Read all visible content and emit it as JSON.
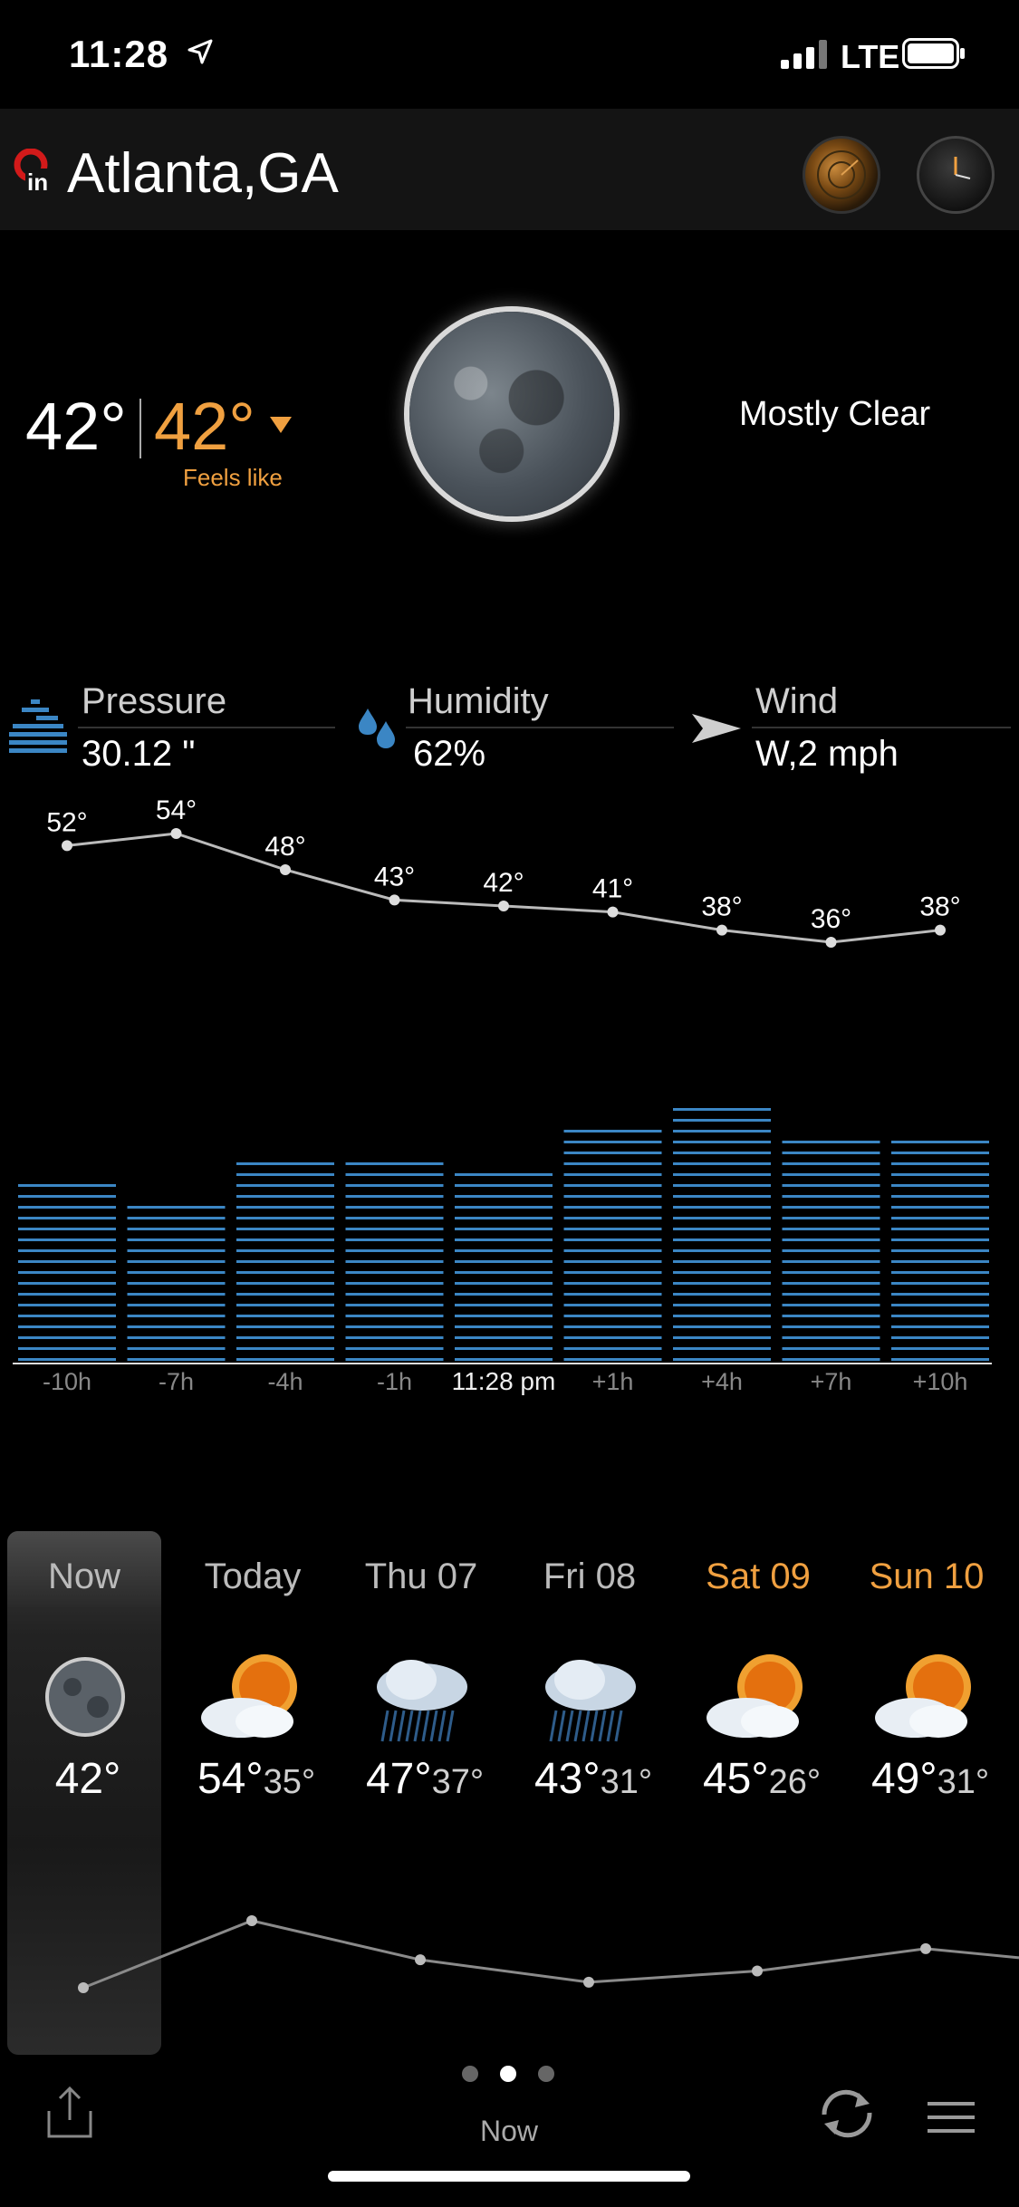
{
  "status": {
    "time": "11:28",
    "network": "LTE"
  },
  "header": {
    "city": "Atlanta,GA"
  },
  "current": {
    "temp": "42°",
    "feels_temp": "42°",
    "feels_label": "Feels like",
    "condition": "Mostly Clear"
  },
  "metrics": [
    {
      "label": "Pressure",
      "value": "30.12 \""
    },
    {
      "label": "Humidity",
      "value": "62%"
    },
    {
      "label": "Wind",
      "value": "W,2 mph"
    }
  ],
  "chart_data": {
    "type": "line",
    "categories": [
      "-10h",
      "-7h",
      "-4h",
      "-1h",
      "11:28 pm",
      "+1h",
      "+4h",
      "+7h",
      "+10h"
    ],
    "series": [
      {
        "values": [
          52,
          54,
          48,
          43,
          42,
          41,
          38,
          36,
          38
        ]
      }
    ],
    "value_labels": [
      "52°",
      "54°",
      "48°",
      "43°",
      "42°",
      "41°",
      "38°",
      "36°",
      "38°"
    ],
    "humidity_levels": [
      0.53,
      0.49,
      0.6,
      0.6,
      0.56,
      0.7,
      0.77,
      0.68,
      0.68
    ],
    "grid": false,
    "legend": "none"
  },
  "daily": [
    {
      "label": "Now",
      "hi": "42°",
      "lo": "",
      "icon": "moon-icon",
      "weekend": false,
      "trend": 42
    },
    {
      "label": "Today",
      "hi": "54°",
      "lo": "35°",
      "icon": "partly-sunny-icon",
      "weekend": false,
      "trend": 54
    },
    {
      "label": "Thu 07",
      "hi": "47°",
      "lo": "37°",
      "icon": "rain-cloud-icon",
      "weekend": false,
      "trend": 47
    },
    {
      "label": "Fri 08",
      "hi": "43°",
      "lo": "31°",
      "icon": "rain-cloud-icon",
      "weekend": false,
      "trend": 43
    },
    {
      "label": "Sat 09",
      "hi": "45°",
      "lo": "26°",
      "icon": "partly-sunny-icon",
      "weekend": true,
      "trend": 45
    },
    {
      "label": "Sun 10",
      "hi": "49°",
      "lo": "31°",
      "icon": "partly-sunny-icon",
      "weekend": true,
      "trend": 49
    }
  ],
  "bottom": {
    "label": "Now",
    "page_count": 3,
    "active_page": 2
  },
  "colors": {
    "accent": "#f0a040",
    "bars": "#3b86c4",
    "line": "#bbbbbb"
  }
}
